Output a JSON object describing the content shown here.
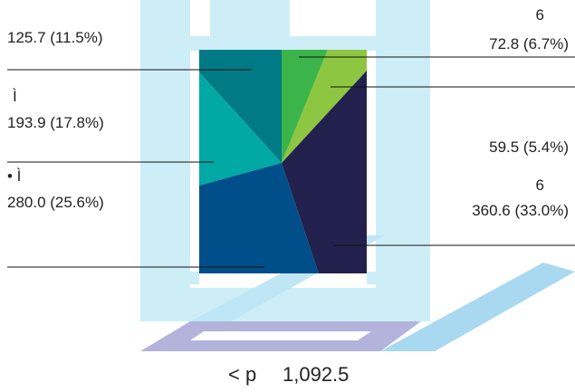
{
  "chart_data": {
    "type": "treemap",
    "total_label": "< p",
    "total_value": "1,092.5",
    "items": [
      {
        "prefix": "",
        "label": "125.7 (11.5%)",
        "value": 125.7,
        "percent": 11.5,
        "color": "#007b86"
      },
      {
        "prefix": "Ì",
        "label": "193.9 (17.8%)",
        "value": 193.9,
        "percent": 17.8,
        "color": "#00a9a4"
      },
      {
        "prefix": "• Ì",
        "label": "280.0 (25.6%)",
        "value": 280.0,
        "percent": 25.6,
        "color": "#004f8b"
      },
      {
        "prefix": "6",
        "label": "72.8 (6.7%)",
        "value": 72.8,
        "percent": 6.7,
        "color": "#3bb54a"
      },
      {
        "prefix": "",
        "label": "59.5 (5.4%)",
        "value": 59.5,
        "percent": 5.4,
        "color": "#8dc640"
      },
      {
        "prefix": "6",
        "label": "360.6 (33.0%)",
        "value": 360.6,
        "percent": 33.0,
        "color": "#22204c"
      }
    ],
    "background_color": "#cdeef7",
    "base_colors": [
      "#b3b3dc",
      "#a9d9f0"
    ]
  }
}
